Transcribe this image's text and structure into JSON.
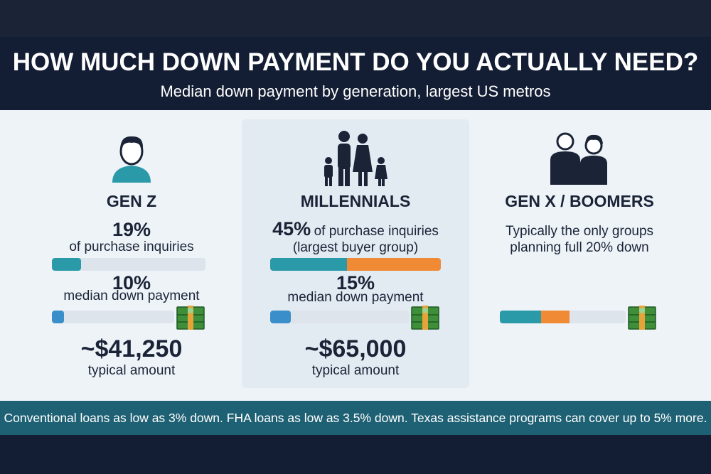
{
  "header": {
    "title": "HOW MUCH DOWN PAYMENT DO YOU ACTUALLY NEED?",
    "subtitle": "Median down payment by generation, largest US metros"
  },
  "columns": [
    {
      "name": "GEN Z",
      "inquiries": {
        "value": 19,
        "label": "19%"
      },
      "inquiries_text": "of purchase inquiries",
      "down_payment": {
        "value": 10,
        "label": "10%"
      },
      "down_payment_text": "median down payment",
      "amount": "~$41,250",
      "amount_text": "typical amount"
    },
    {
      "name": "MILLENNIALS",
      "inquiries": {
        "value": 45,
        "label": "45%"
      },
      "inquiries_text": "of purchase inquiries",
      "inquiries_note": "(largest buyer group)",
      "down_payment": {
        "value": 15,
        "label": "15%"
      },
      "down_payment_text": "median down payment",
      "amount": "~$65,000",
      "amount_text": "typical amount"
    },
    {
      "name": "GEN X / BOOMERS",
      "note": "Typically the only groups planning full 20% down"
    }
  ],
  "footer": "Conventional loans as low as 3% down. FHA loans as low as 3.5% down. Texas assistance programs can cover up to 5% more."
}
